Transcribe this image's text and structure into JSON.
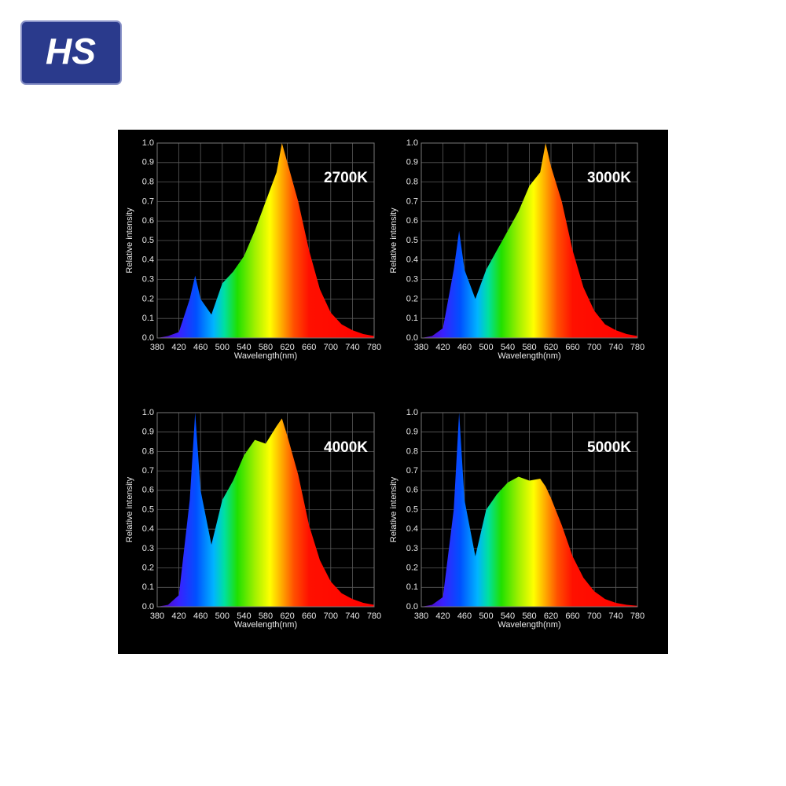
{
  "logo": "HS",
  "chart_data": [
    {
      "type": "area",
      "title": "2700K",
      "xlabel": "Wavelength(nm)",
      "ylabel": "Relative intensity",
      "x": [
        380,
        400,
        420,
        440,
        450,
        460,
        480,
        500,
        520,
        540,
        560,
        580,
        600,
        610,
        620,
        640,
        660,
        680,
        700,
        720,
        740,
        760,
        780
      ],
      "values": [
        0,
        0.01,
        0.03,
        0.2,
        0.32,
        0.2,
        0.12,
        0.28,
        0.34,
        0.42,
        0.55,
        0.7,
        0.85,
        1,
        0.9,
        0.7,
        0.45,
        0.25,
        0.13,
        0.07,
        0.04,
        0.02,
        0.01
      ],
      "xlim": [
        380,
        780
      ],
      "ylim": [
        0,
        1
      ],
      "xticks": [
        380,
        420,
        460,
        500,
        540,
        580,
        620,
        660,
        700,
        740,
        780
      ],
      "yticks": [
        {
          "value": 0,
          "label": "0.0"
        },
        0.1,
        0.2,
        0.3,
        0.4,
        0.5,
        0.6,
        0.7,
        0.8,
        0.9,
        {
          "value": 1,
          "label": "1.0"
        }
      ],
      "grid": true
    },
    {
      "type": "area",
      "title": "3000K",
      "xlabel": "Wavelength(nm)",
      "ylabel": "Relative intensity",
      "x": [
        380,
        400,
        420,
        440,
        450,
        460,
        480,
        500,
        520,
        540,
        560,
        580,
        600,
        610,
        620,
        640,
        660,
        680,
        700,
        720,
        740,
        760,
        780
      ],
      "values": [
        0,
        0.01,
        0.05,
        0.35,
        0.55,
        0.35,
        0.2,
        0.35,
        0.45,
        0.55,
        0.65,
        0.78,
        0.85,
        1,
        0.88,
        0.7,
        0.45,
        0.26,
        0.14,
        0.07,
        0.04,
        0.02,
        0.01
      ],
      "xlim": [
        380,
        780
      ],
      "ylim": [
        0,
        1
      ],
      "xticks": [
        380,
        420,
        460,
        500,
        540,
        580,
        620,
        660,
        700,
        740,
        780
      ],
      "yticks": [
        {
          "value": 0,
          "label": "0.0"
        },
        0.1,
        0.2,
        0.3,
        0.4,
        0.5,
        0.6,
        0.7,
        0.8,
        0.9,
        {
          "value": 1,
          "label": "1.0"
        }
      ],
      "grid": true
    },
    {
      "type": "area",
      "title": "4000K",
      "xlabel": "Wavelength(nm)",
      "ylabel": "Relative intensity",
      "x": [
        380,
        400,
        420,
        440,
        450,
        460,
        480,
        500,
        520,
        540,
        560,
        580,
        600,
        610,
        620,
        640,
        660,
        680,
        700,
        720,
        740,
        760,
        780
      ],
      "values": [
        0,
        0.01,
        0.06,
        0.55,
        1,
        0.6,
        0.32,
        0.55,
        0.65,
        0.78,
        0.86,
        0.84,
        0.93,
        0.97,
        0.88,
        0.68,
        0.42,
        0.24,
        0.13,
        0.07,
        0.04,
        0.02,
        0.01
      ],
      "xlim": [
        380,
        780
      ],
      "ylim": [
        0,
        1
      ],
      "xticks": [
        380,
        420,
        460,
        500,
        540,
        580,
        620,
        660,
        700,
        740,
        780
      ],
      "yticks": [
        {
          "value": 0,
          "label": "0.0"
        },
        0.1,
        0.2,
        0.3,
        0.4,
        0.5,
        0.6,
        0.7,
        0.8,
        0.9,
        {
          "value": 1,
          "label": "1.0"
        }
      ],
      "grid": true
    },
    {
      "type": "area",
      "title": "5000K",
      "xlabel": "Wavelength(nm)",
      "ylabel": "Relative intensity",
      "x": [
        380,
        400,
        420,
        440,
        450,
        460,
        480,
        500,
        520,
        540,
        560,
        580,
        600,
        610,
        620,
        640,
        660,
        680,
        700,
        720,
        740,
        760,
        780
      ],
      "values": [
        0,
        0.01,
        0.05,
        0.5,
        1,
        0.55,
        0.26,
        0.5,
        0.58,
        0.64,
        0.67,
        0.65,
        0.66,
        0.62,
        0.56,
        0.42,
        0.26,
        0.15,
        0.08,
        0.04,
        0.02,
        0.01,
        0.005
      ],
      "xlim": [
        380,
        780
      ],
      "ylim": [
        0,
        1
      ],
      "xticks": [
        380,
        420,
        460,
        500,
        540,
        580,
        620,
        660,
        700,
        740,
        780
      ],
      "yticks": [
        {
          "value": 0,
          "label": "0.0"
        },
        0.1,
        0.2,
        0.3,
        0.4,
        0.5,
        0.6,
        0.7,
        0.8,
        0.9,
        {
          "value": 1,
          "label": "1.0"
        }
      ],
      "grid": true
    }
  ]
}
